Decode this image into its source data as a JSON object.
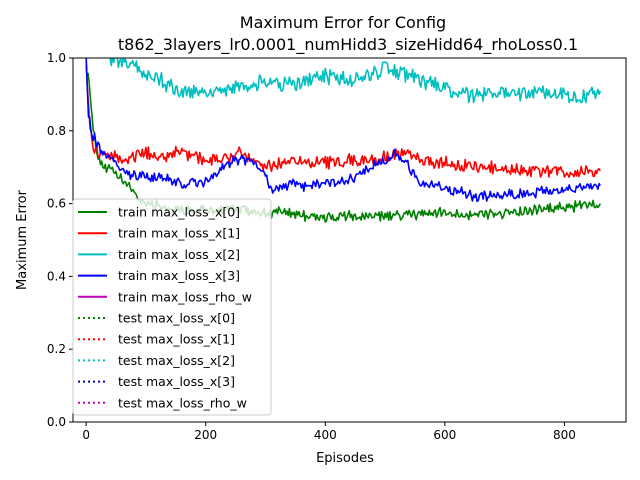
{
  "chart_data": {
    "type": "line",
    "title": "Maximum Error for Config",
    "subtitle": "t862_3layers_lr0.0001_numHidd3_sizeHidd64_rhoLoss0.1",
    "xlabel": "Episodes",
    "ylabel": "Maximum Error",
    "xlim": [
      -22,
      903
    ],
    "ylim": [
      0.0,
      1.0
    ],
    "xticks": [
      0,
      200,
      400,
      600,
      800
    ],
    "yticks": [
      0.0,
      0.2,
      0.4,
      0.6,
      0.8,
      1.0
    ],
    "xtick_labels": [
      "0",
      "200",
      "400",
      "600",
      "800"
    ],
    "ytick_labels": [
      "0.0",
      "0.2",
      "0.4",
      "0.6",
      "0.8",
      "1.0"
    ],
    "grid": false,
    "legend_position": "lower-left",
    "series": [
      {
        "name": "train max_loss_x[0]",
        "color": "#008000",
        "dash": "solid",
        "x": [
          0,
          5,
          8,
          12,
          20,
          30,
          50,
          70,
          90,
          110,
          130,
          160,
          200,
          250,
          280,
          300,
          340,
          400,
          450,
          500,
          550,
          600,
          650,
          700,
          750,
          800,
          830,
          860
        ],
        "y": [
          0.98,
          0.94,
          0.88,
          0.8,
          0.73,
          0.7,
          0.68,
          0.65,
          0.61,
          0.6,
          0.59,
          0.58,
          0.58,
          0.585,
          0.58,
          0.575,
          0.575,
          0.56,
          0.565,
          0.565,
          0.57,
          0.575,
          0.57,
          0.575,
          0.58,
          0.59,
          0.595,
          0.6
        ]
      },
      {
        "name": "train max_loss_x[1]",
        "color": "#ff0000",
        "dash": "solid",
        "x": [
          0,
          5,
          10,
          20,
          40,
          60,
          80,
          100,
          130,
          160,
          200,
          240,
          260,
          280,
          300,
          340,
          400,
          440,
          480,
          510,
          530,
          560,
          600,
          650,
          700,
          750,
          800,
          860
        ],
        "y": [
          0.99,
          0.84,
          0.76,
          0.74,
          0.73,
          0.72,
          0.73,
          0.74,
          0.73,
          0.74,
          0.72,
          0.73,
          0.74,
          0.72,
          0.7,
          0.72,
          0.71,
          0.72,
          0.72,
          0.73,
          0.74,
          0.72,
          0.71,
          0.7,
          0.695,
          0.69,
          0.685,
          0.69
        ]
      },
      {
        "name": "train max_loss_x[2]",
        "color": "#00bfbf",
        "dash": "solid",
        "x": [
          40,
          60,
          80,
          100,
          130,
          160,
          180,
          200,
          250,
          300,
          350,
          400,
          450,
          500,
          530,
          560,
          600,
          650,
          700,
          750,
          800,
          840,
          860
        ],
        "y": [
          1.0,
          0.99,
          0.98,
          0.96,
          0.93,
          0.91,
          0.905,
          0.9,
          0.92,
          0.93,
          0.93,
          0.95,
          0.94,
          0.97,
          0.96,
          0.94,
          0.91,
          0.9,
          0.905,
          0.91,
          0.9,
          0.89,
          0.91
        ]
      },
      {
        "name": "train max_loss_x[3]",
        "color": "#0000ff",
        "dash": "solid",
        "x": [
          0,
          4,
          8,
          12,
          20,
          40,
          60,
          80,
          100,
          130,
          160,
          200,
          230,
          250,
          270,
          290,
          310,
          340,
          380,
          420,
          460,
          500,
          520,
          540,
          560,
          600,
          650,
          700,
          750,
          800,
          830,
          860
        ],
        "y": [
          1.0,
          0.85,
          0.79,
          0.78,
          0.76,
          0.72,
          0.69,
          0.68,
          0.67,
          0.67,
          0.65,
          0.66,
          0.7,
          0.72,
          0.72,
          0.7,
          0.64,
          0.65,
          0.65,
          0.66,
          0.68,
          0.72,
          0.74,
          0.7,
          0.66,
          0.64,
          0.62,
          0.625,
          0.63,
          0.64,
          0.645,
          0.65
        ]
      },
      {
        "name": "train max_loss_rho_w",
        "color": "#bf00bf",
        "dash": "solid",
        "x": [],
        "y": []
      },
      {
        "name": "test max_loss_x[0]",
        "color": "#008000",
        "dash": "dotted",
        "x": [],
        "y": []
      },
      {
        "name": "test max_loss_x[1]",
        "color": "#ff0000",
        "dash": "dotted",
        "x": [],
        "y": []
      },
      {
        "name": "test max_loss_x[2]",
        "color": "#00bfbf",
        "dash": "dotted",
        "x": [],
        "y": []
      },
      {
        "name": "test max_loss_x[3]",
        "color": "#0000bf",
        "dash": "dotted",
        "x": [],
        "y": []
      },
      {
        "name": "test max_loss_rho_w",
        "color": "#bf00bf",
        "dash": "dotted",
        "x": [],
        "y": []
      }
    ]
  }
}
